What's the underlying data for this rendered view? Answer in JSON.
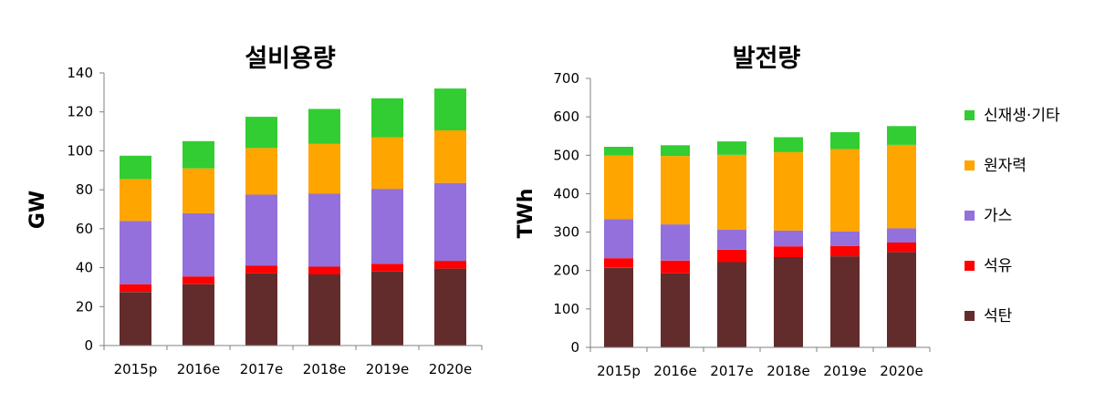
{
  "chart_data": [
    {
      "type": "bar",
      "stacked": true,
      "title": "설비용량",
      "xlabel": "",
      "ylabel": "GW",
      "ylim": [
        0,
        140
      ],
      "yticks": [
        0,
        20,
        40,
        60,
        80,
        100,
        120,
        140
      ],
      "categories": [
        "2015p",
        "2016e",
        "2017e",
        "2018e",
        "2019e",
        "2020e"
      ],
      "series": [
        {
          "name": "석탄",
          "color": "#632C2C",
          "values": [
            27.5,
            31.5,
            37,
            36.5,
            38,
            39.5
          ]
        },
        {
          "name": "석유",
          "color": "#FF0000",
          "values": [
            4,
            4,
            4,
            4,
            4,
            4
          ]
        },
        {
          "name": "가스",
          "color": "#9370DB",
          "values": [
            32.5,
            32.5,
            36.5,
            37.5,
            38.5,
            40
          ]
        },
        {
          "name": "원자력",
          "color": "#FFA500",
          "values": [
            21.5,
            23,
            24,
            25.5,
            26.5,
            27
          ]
        },
        {
          "name": "신재생·기타",
          "color": "#32CD32",
          "values": [
            12,
            14,
            16,
            18,
            20,
            21.5
          ]
        }
      ],
      "grid": false
    },
    {
      "type": "bar",
      "stacked": true,
      "title": "발전량",
      "xlabel": "",
      "ylabel": "TWh",
      "ylim": [
        0,
        700
      ],
      "yticks": [
        0,
        100,
        200,
        300,
        400,
        500,
        600,
        700
      ],
      "categories": [
        "2015p",
        "2016e",
        "2017e",
        "2018e",
        "2019e",
        "2020e"
      ],
      "series": [
        {
          "name": "석탄",
          "color": "#632C2C",
          "values": [
            207,
            193,
            222,
            235,
            237,
            248
          ]
        },
        {
          "name": "석유",
          "color": "#FF0000",
          "values": [
            25,
            33,
            32,
            28,
            27,
            25
          ]
        },
        {
          "name": "가스",
          "color": "#9370DB",
          "values": [
            102,
            94,
            52,
            41,
            38,
            37
          ]
        },
        {
          "name": "원자력",
          "color": "#FFA500",
          "values": [
            165,
            178,
            195,
            204,
            214,
            217
          ]
        },
        {
          "name": "신재생·기타",
          "color": "#32CD32",
          "values": [
            23,
            28,
            35,
            39,
            44,
            49
          ]
        }
      ],
      "grid": false
    }
  ],
  "legend": {
    "placement": "right",
    "items": [
      {
        "label": "신재생·기타",
        "color": "#32CD32"
      },
      {
        "label": "원자력",
        "color": "#FFA500"
      },
      {
        "label": "가스",
        "color": "#9370DB"
      },
      {
        "label": "석유",
        "color": "#FF0000"
      },
      {
        "label": "석탄",
        "color": "#632C2C"
      }
    ]
  }
}
